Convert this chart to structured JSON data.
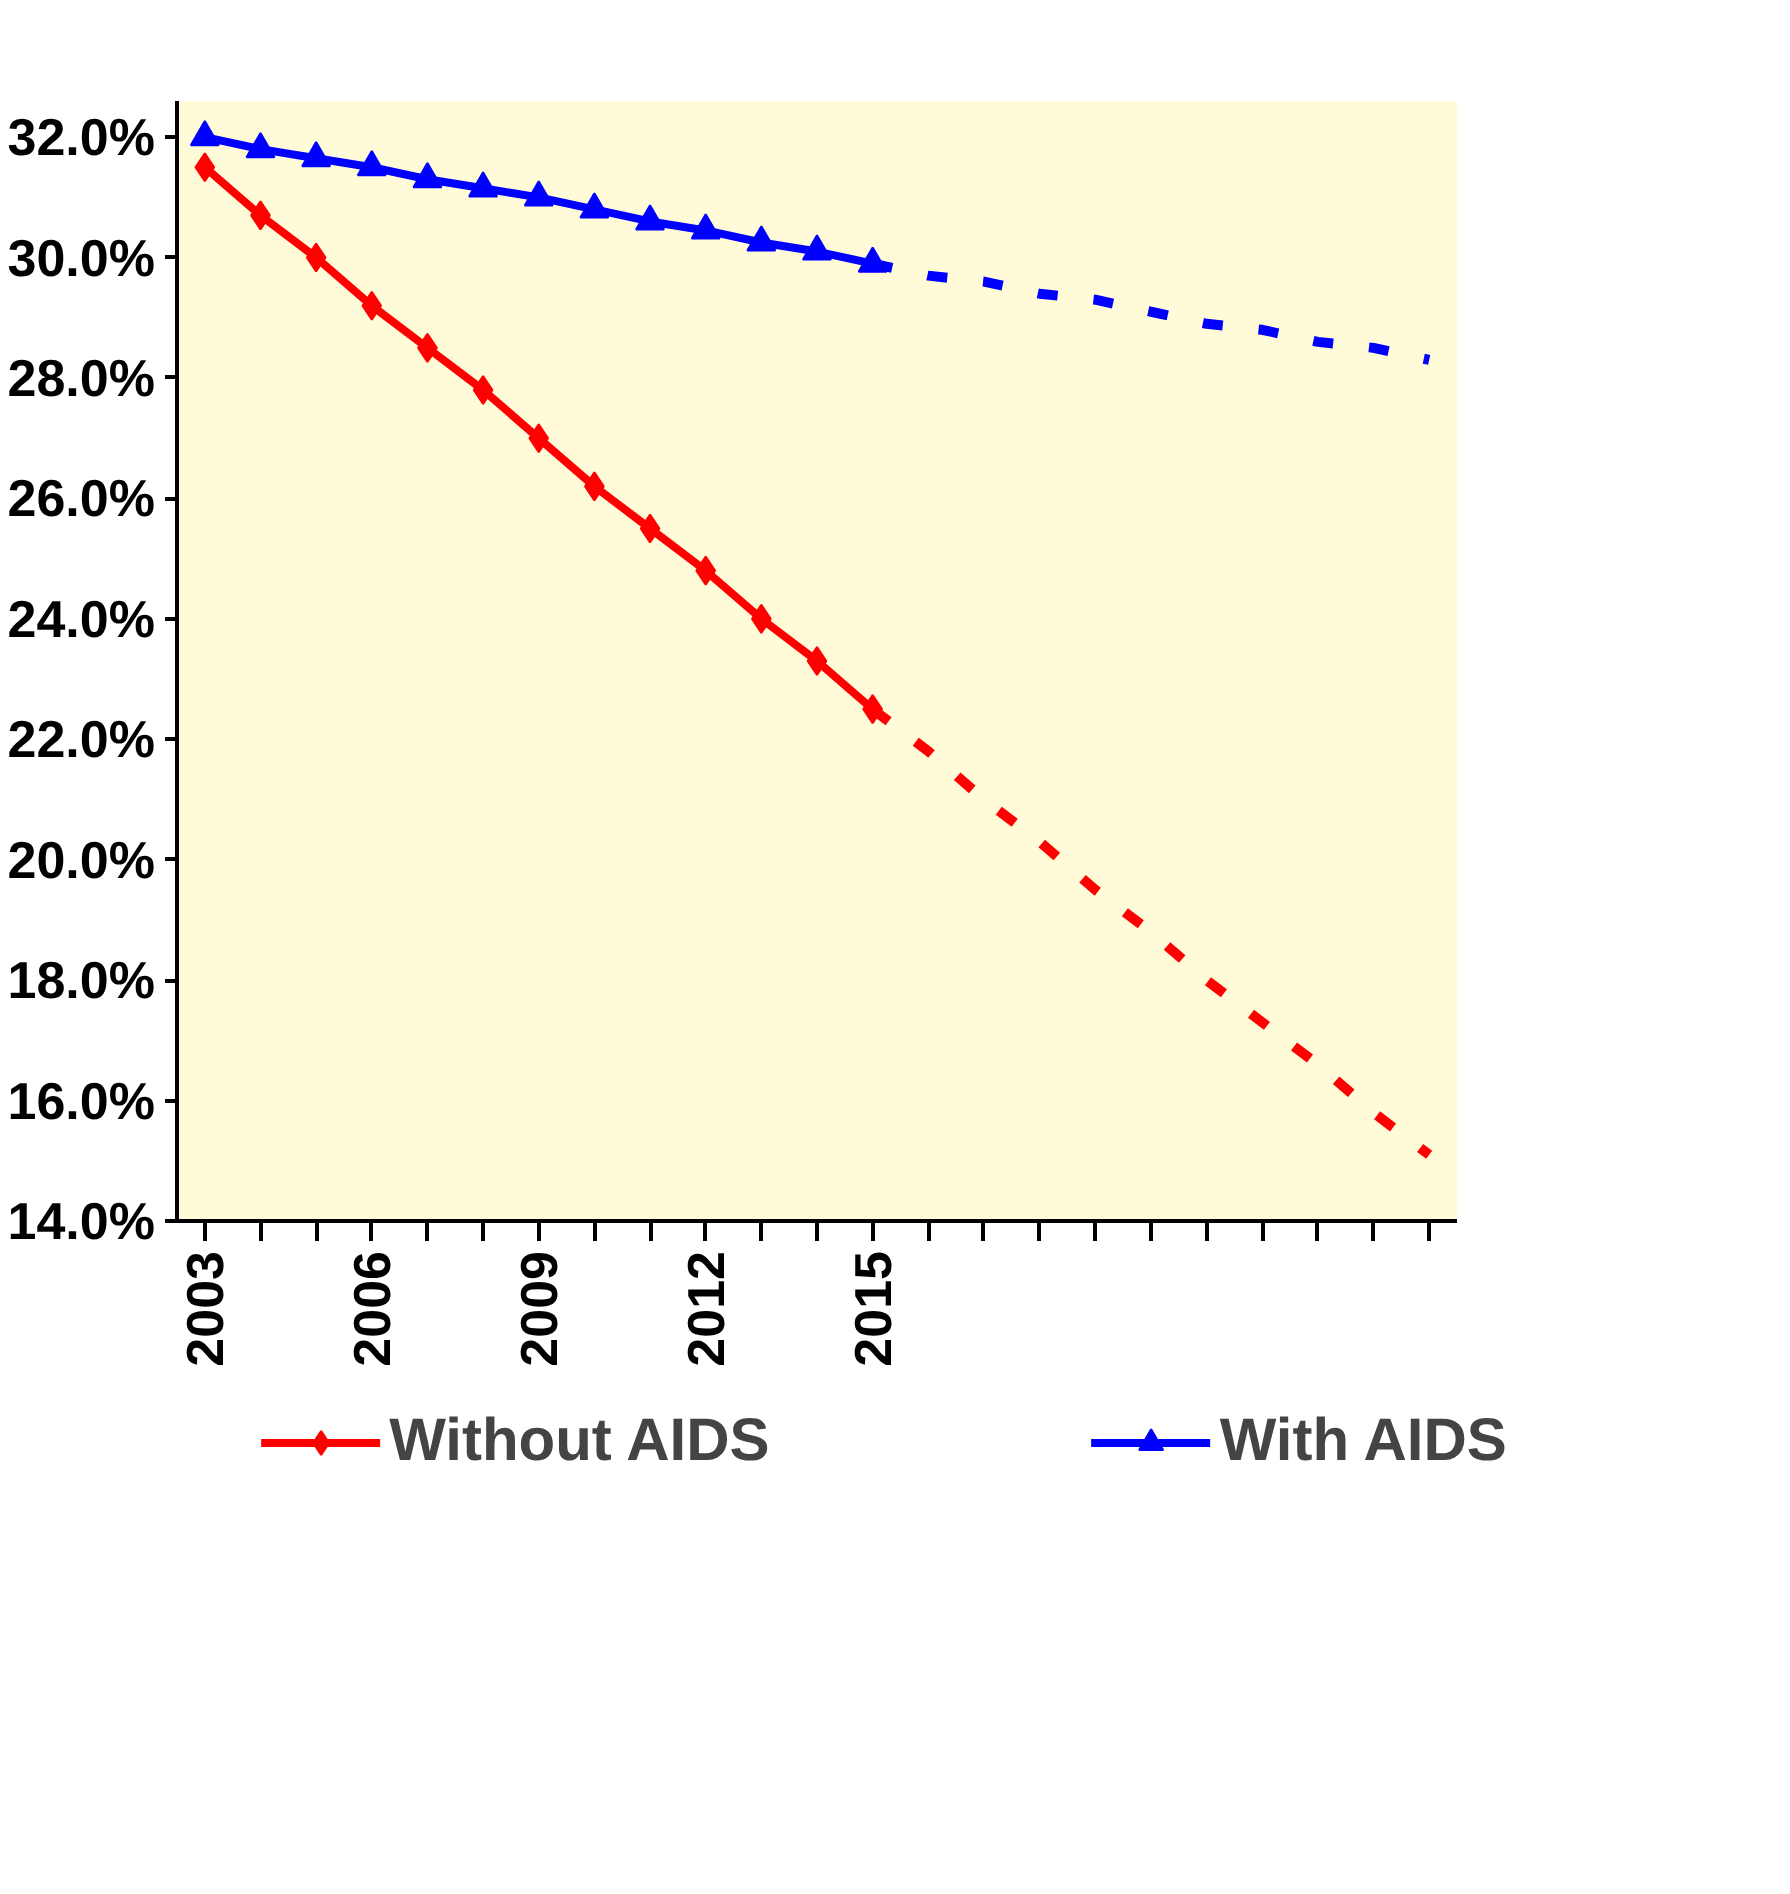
{
  "chart_data": {
    "type": "line",
    "x": [
      2003,
      2004,
      2005,
      2006,
      2007,
      2008,
      2009,
      2010,
      2011,
      2012,
      2013,
      2014,
      2015,
      2016,
      2017,
      2018,
      2019,
      2020,
      2021,
      2022,
      2023,
      2024,
      2025
    ],
    "series": [
      {
        "name": "Without AIDS",
        "color": "#ff0000",
        "marker": "diamond",
        "line_style": "solid",
        "values": [
          31.5,
          30.7,
          30.0,
          29.2,
          28.5,
          27.8,
          27.0,
          26.2,
          25.5,
          24.8,
          24.0,
          23.3,
          22.5,
          null,
          null,
          null,
          null,
          null,
          null,
          null,
          null,
          null,
          null
        ]
      },
      {
        "name": "With AIDS",
        "color": "#0000ff",
        "marker": "triangle",
        "line_style": "solid",
        "values": [
          32.0,
          31.8,
          31.65,
          31.5,
          31.3,
          31.15,
          31.0,
          30.8,
          30.6,
          30.45,
          30.25,
          30.1,
          29.9,
          null,
          null,
          null,
          null,
          null,
          null,
          null,
          null,
          null,
          null
        ]
      },
      {
        "color": "#ff0000",
        "marker": "none",
        "line_style": "dashed",
        "values": [
          null,
          null,
          null,
          null,
          null,
          null,
          null,
          null,
          null,
          null,
          null,
          null,
          22.5,
          21.8,
          21.0,
          20.3,
          19.5,
          18.8,
          18.0,
          17.3,
          16.6,
          15.8,
          15.1
        ]
      },
      {
        "color": "#0000ff",
        "marker": "none",
        "line_style": "dashed",
        "values": [
          null,
          null,
          null,
          null,
          null,
          null,
          null,
          null,
          null,
          null,
          null,
          null,
          29.9,
          29.7,
          29.6,
          29.4,
          29.3,
          29.1,
          28.9,
          28.8,
          28.6,
          28.5,
          28.3
        ]
      }
    ],
    "xlim": [
      2002.5,
      2025.5
    ],
    "xticks": [
      2003,
      {
        "value": 2004,
        "label": null
      },
      {
        "value": 2005,
        "label": null
      },
      2006,
      {
        "value": 2007,
        "label": null
      },
      {
        "value": 2008,
        "label": null
      },
      2009,
      {
        "value": 2010,
        "label": null
      },
      {
        "value": 2011,
        "label": null
      },
      2012,
      {
        "value": 2013,
        "label": null
      },
      {
        "value": 2014,
        "label": null
      },
      2015,
      {
        "value": 2016,
        "label": null
      },
      {
        "value": 2017,
        "label": null
      },
      {
        "value": 2018,
        "label": null
      },
      {
        "value": 2019,
        "label": null
      },
      {
        "value": 2020,
        "label": null
      },
      {
        "value": 2021,
        "label": null
      },
      {
        "value": 2022,
        "label": null
      },
      {
        "value": 2023,
        "label": null
      },
      {
        "value": 2024,
        "label": null
      },
      {
        "value": 2025,
        "label": null
      }
    ],
    "ylim": [
      14,
      32.6
    ],
    "yticks": [
      {
        "value": 14,
        "label": "14.0%"
      },
      {
        "value": 16,
        "label": "16.0%"
      },
      {
        "value": 18,
        "label": "18.0%"
      },
      {
        "value": 20,
        "label": "20.0%"
      },
      {
        "value": 22,
        "label": "22.0%"
      },
      {
        "value": 24,
        "label": "24.0%"
      },
      {
        "value": 26,
        "label": "26.0%"
      },
      {
        "value": 28,
        "label": "28.0%"
      },
      {
        "value": 30,
        "label": "30.0%"
      },
      {
        "value": 32,
        "label": "32.0%"
      }
    ],
    "grid": false,
    "legend": "bottom"
  }
}
